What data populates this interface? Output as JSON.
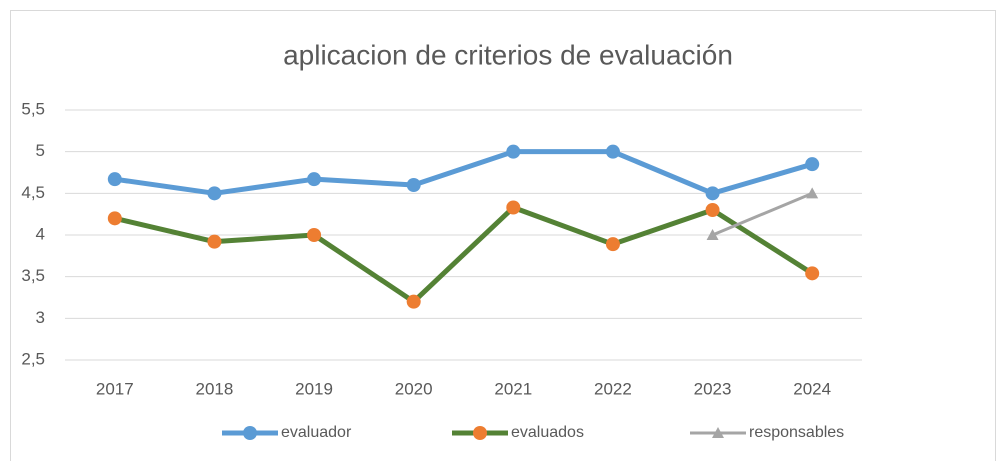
{
  "chart_data": {
    "type": "line",
    "title": "aplicacion de criterios de evaluación",
    "categories": [
      "2017",
      "2018",
      "2019",
      "2020",
      "2021",
      "2022",
      "2023",
      "2024"
    ],
    "series": [
      {
        "name": "evaluador",
        "color": "#5b9bd5",
        "marker": "circle",
        "marker_color": "#5b9bd5",
        "values": [
          4.67,
          4.5,
          4.67,
          4.6,
          5.0,
          5.0,
          4.5,
          4.85
        ]
      },
      {
        "name": "evaluados",
        "color": "#548235",
        "marker": "circle",
        "marker_color": "#ed7d31",
        "values": [
          4.2,
          3.92,
          4.0,
          3.2,
          4.33,
          3.89,
          4.3,
          3.54
        ]
      },
      {
        "name": "responsables",
        "color": "#a5a5a5",
        "marker": "triangle",
        "marker_color": "#a5a5a5",
        "values": [
          null,
          null,
          null,
          null,
          null,
          null,
          4.0,
          4.5
        ]
      }
    ],
    "ylim": [
      2.5,
      5.5
    ],
    "yticks": [
      {
        "value": 2.5,
        "label": "2,5"
      },
      3,
      {
        "value": 3.5,
        "label": "3,5"
      },
      4,
      {
        "value": 4.5,
        "label": "4,5"
      },
      5,
      {
        "value": 5.5,
        "label": "5,5"
      }
    ],
    "grid": true,
    "legend": "bottom"
  }
}
